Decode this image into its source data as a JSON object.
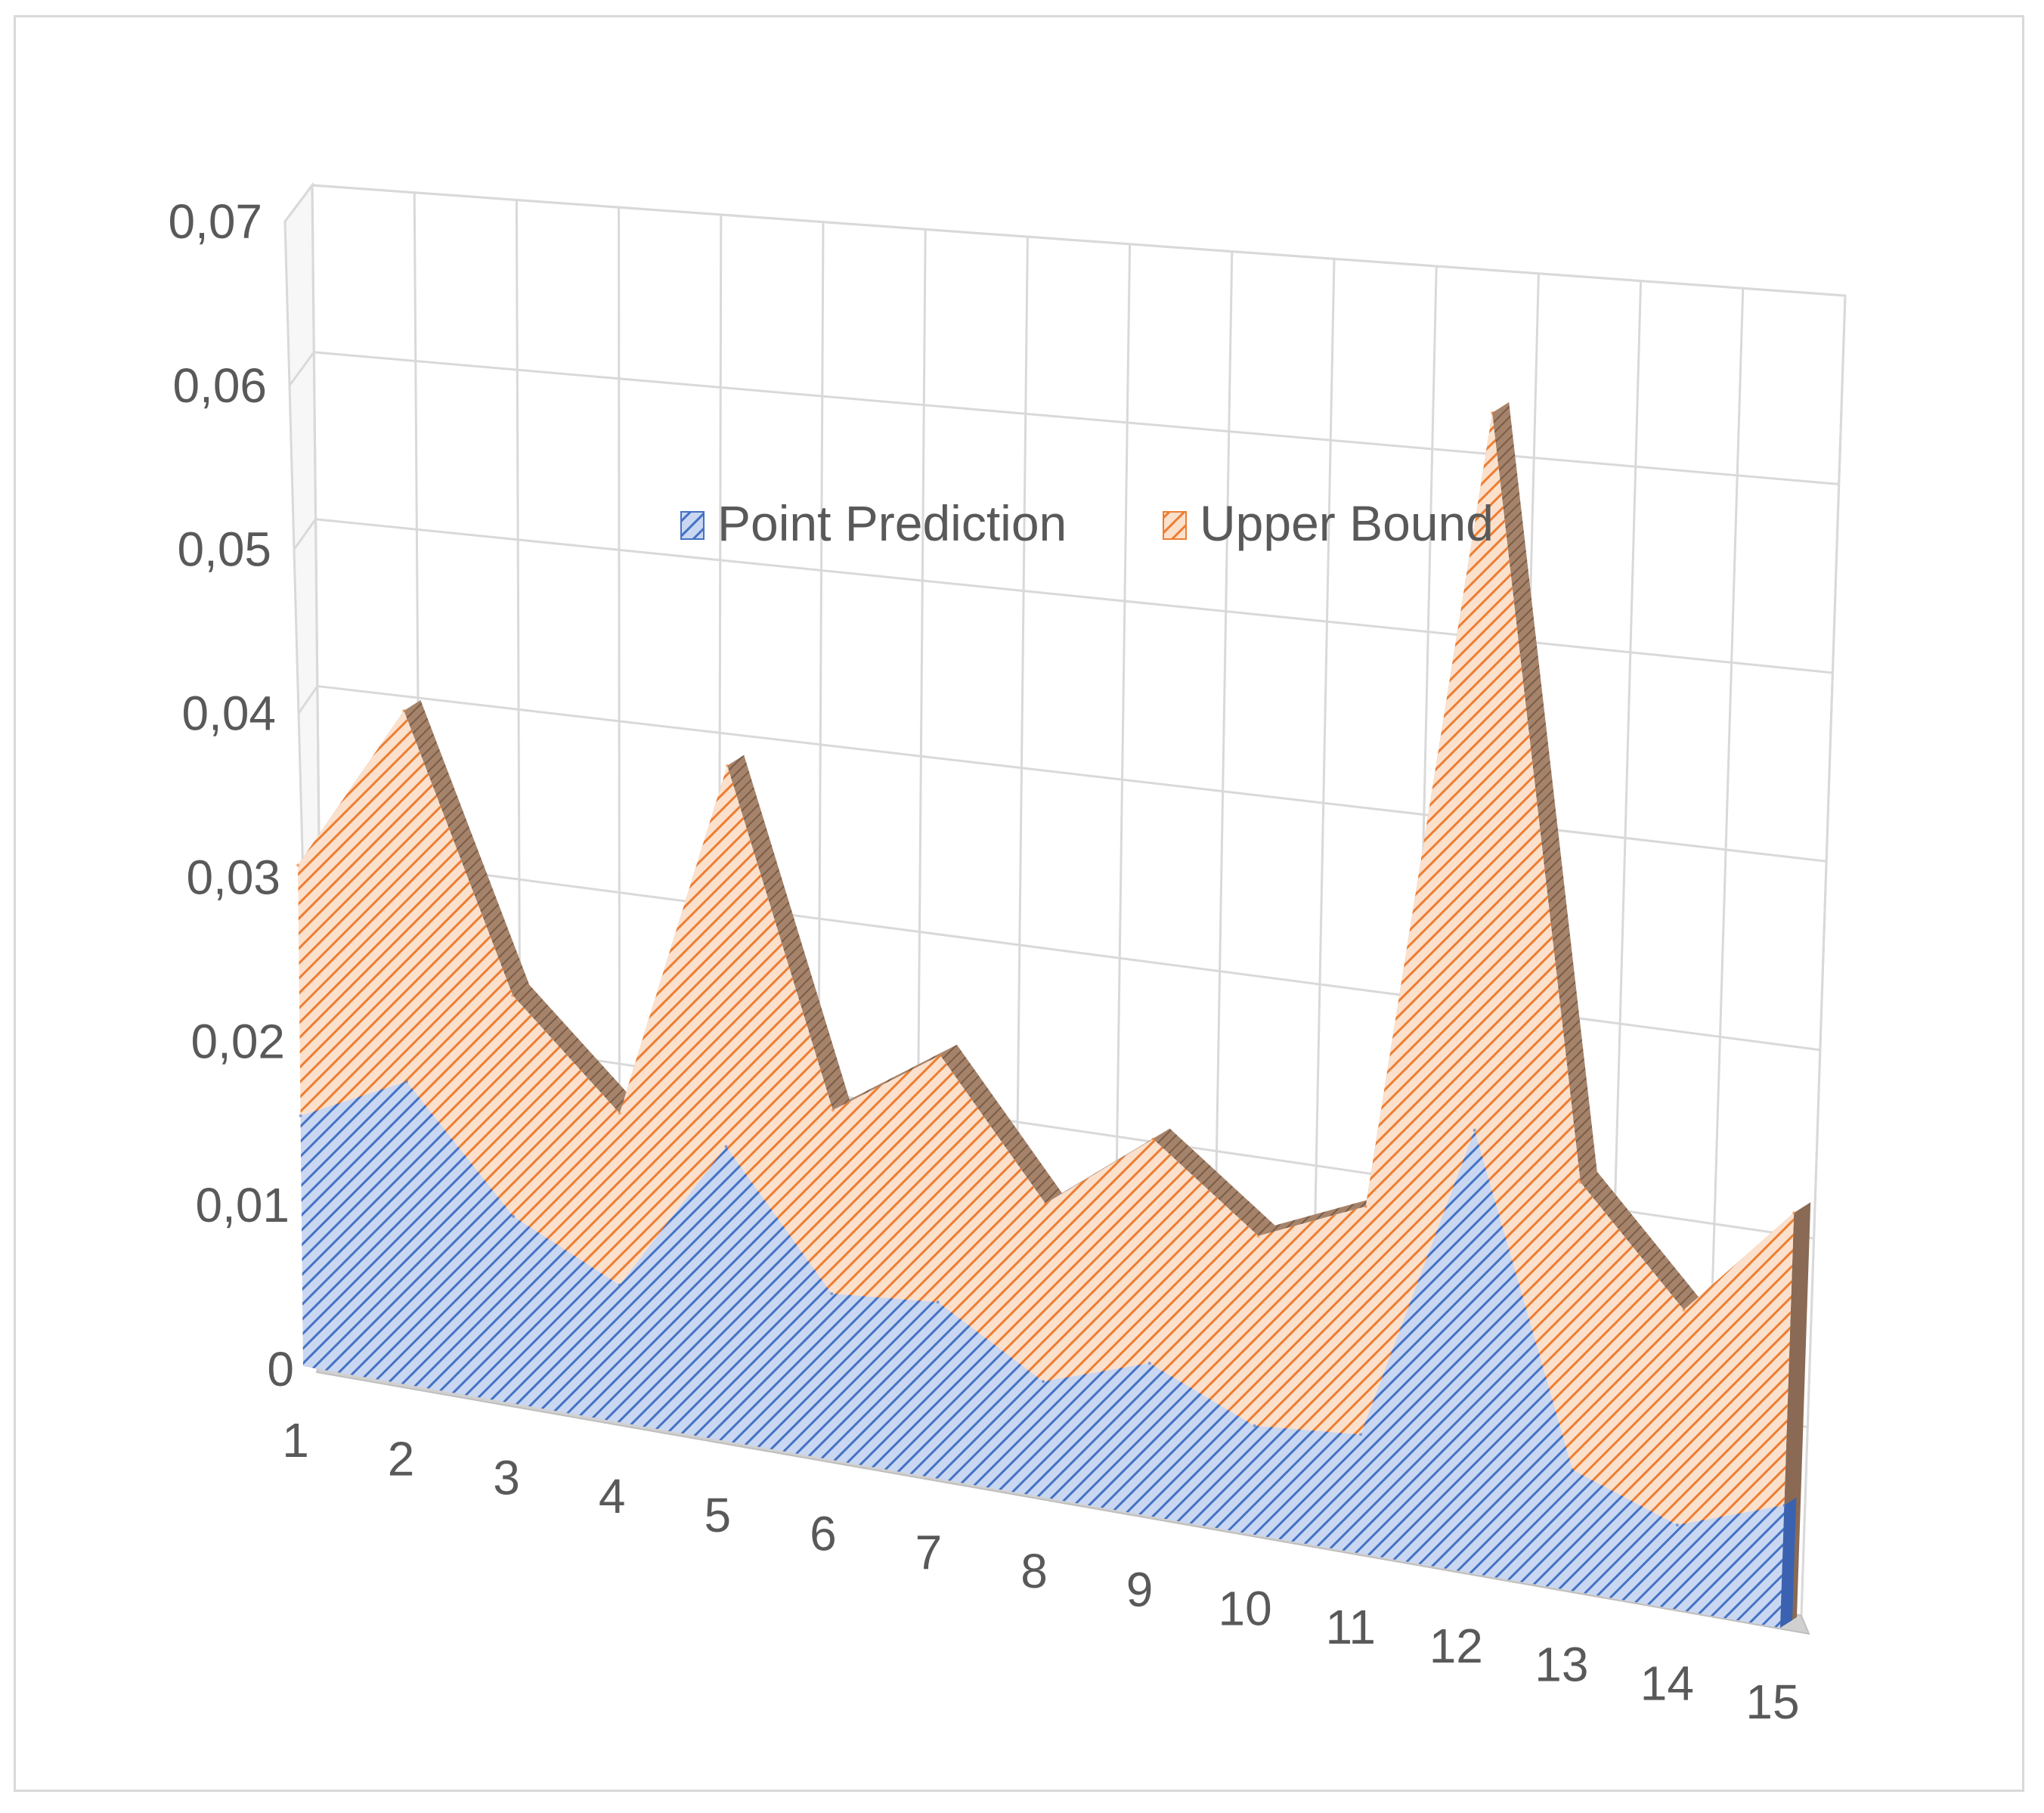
{
  "chart_data": {
    "type": "area",
    "style": "3d",
    "categories": [
      "1",
      "2",
      "3",
      "4",
      "5",
      "6",
      "7",
      "8",
      "9",
      "10",
      "11",
      "12",
      "13",
      "14",
      "15"
    ],
    "series": [
      {
        "name": "Point Prediction",
        "values": [
          0.015,
          0.018,
          0.011,
          0.008,
          0.017,
          0.0095,
          0.01,
          0.0065,
          0.0085,
          0.006,
          0.0065,
          0.024,
          0.0065,
          0.0045,
          0.0065
        ],
        "color": "#4472c4"
      },
      {
        "name": "Upper Bound",
        "values": [
          0.03,
          0.04,
          0.024,
          0.018,
          0.039,
          0.02,
          0.024,
          0.0165,
          0.021,
          0.0165,
          0.019,
          0.063,
          0.022,
          0.016,
          0.022
        ],
        "color": "#ed7d31"
      }
    ],
    "y_tick_labels": [
      "0",
      "0,01",
      "0,02",
      "0,03",
      "0,04",
      "0,05",
      "0,06",
      "0,07"
    ],
    "ylim": [
      0,
      0.07
    ],
    "grid": true,
    "legend_position": "top-center"
  }
}
